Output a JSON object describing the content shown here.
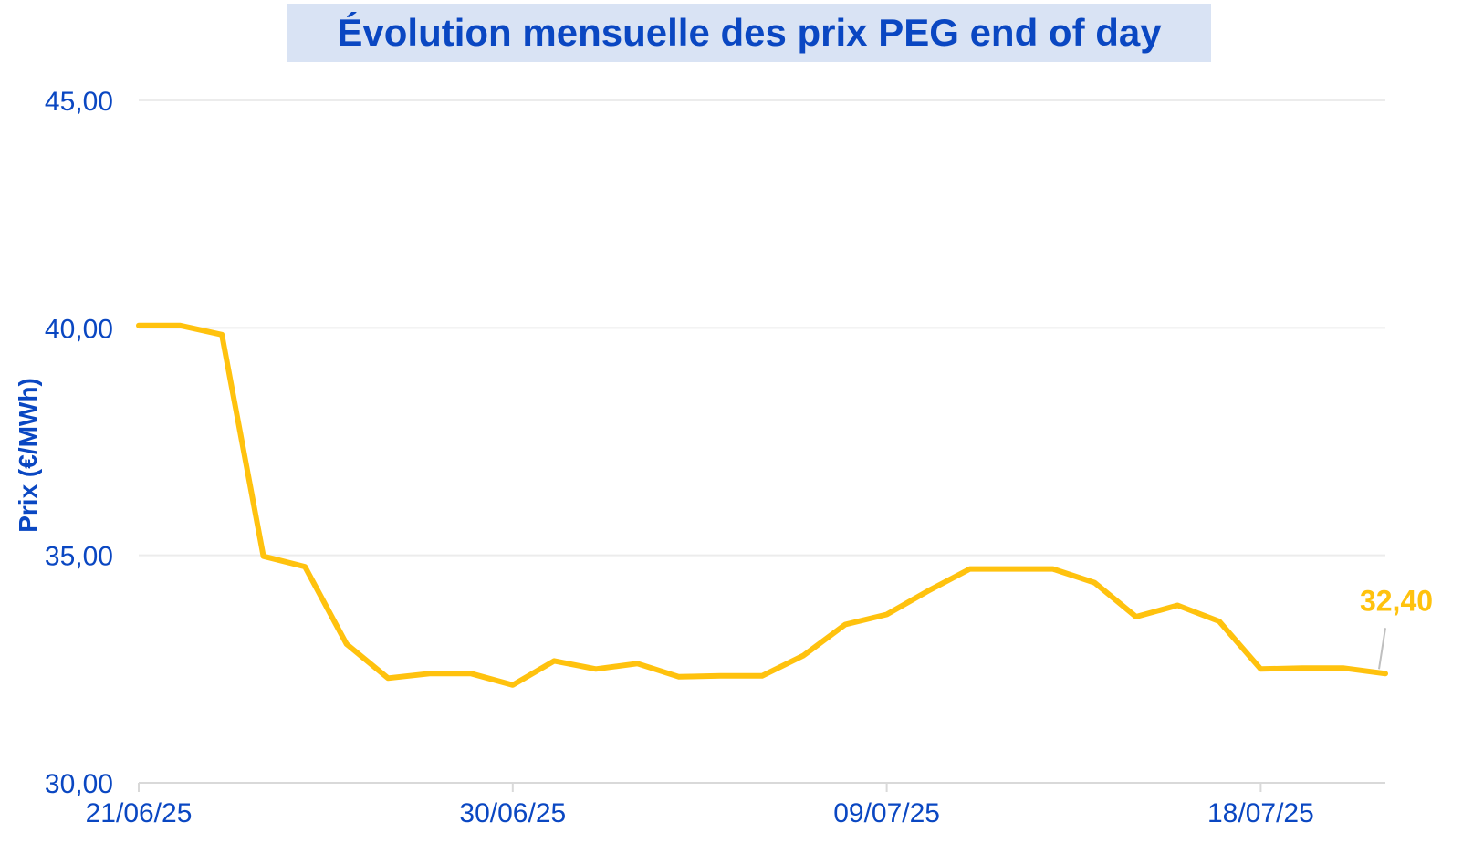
{
  "chart_data": {
    "type": "line",
    "title": "Évolution mensuelle des prix PEG end of day",
    "ylabel": "Prix (€/MWh)",
    "xlabel": "",
    "ylim": [
      30,
      45
    ],
    "y_ticks": [
      "30,00",
      "35,00",
      "40,00",
      "45,00"
    ],
    "x_tick_labels": [
      "21/06/25",
      "30/06/25",
      "09/07/25",
      "18/07/25"
    ],
    "x_tick_dates": [
      "2025-06-21",
      "2025-06-30",
      "2025-07-09",
      "2025-07-18"
    ],
    "grid": true,
    "legend": "none",
    "line_color": "#ffc20e",
    "text_color": "#0a47c2",
    "series": [
      {
        "dates": [
          "2025-06-21",
          "2025-06-22",
          "2025-06-23",
          "2025-06-24",
          "2025-06-25",
          "2025-06-26",
          "2025-06-27",
          "2025-06-28",
          "2025-06-29",
          "2025-06-30",
          "2025-07-01",
          "2025-07-02",
          "2025-07-03",
          "2025-07-04",
          "2025-07-05",
          "2025-07-06",
          "2025-07-07",
          "2025-07-08",
          "2025-07-09",
          "2025-07-10",
          "2025-07-11",
          "2025-07-12",
          "2025-07-13",
          "2025-07-14",
          "2025-07-15",
          "2025-07-16",
          "2025-07-17",
          "2025-07-18",
          "2025-07-19",
          "2025-07-20",
          "2025-07-21"
        ],
        "values": [
          40.05,
          40.05,
          39.85,
          34.98,
          34.75,
          33.05,
          32.3,
          32.4,
          32.4,
          32.15,
          32.68,
          32.5,
          32.62,
          32.33,
          32.35,
          32.35,
          32.8,
          33.48,
          33.7,
          34.22,
          34.7,
          34.7,
          34.7,
          34.4,
          33.65,
          33.9,
          33.55,
          32.5,
          32.52,
          32.52,
          32.4
        ]
      }
    ],
    "last_value_label": "32,40"
  }
}
